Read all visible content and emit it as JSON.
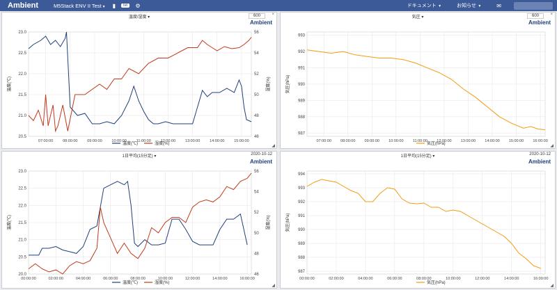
{
  "topbar": {
    "brand": "Ambient",
    "device": "M5Stack ENV II Test",
    "chip_label": "tel",
    "menu_docs": "ドキュメント",
    "menu_notice": "お知らせ",
    "bg": "#3d5a98"
  },
  "panels": [
    {
      "title": "温度/湿度",
      "count": "600",
      "brand": "Ambient",
      "chart_data": {
        "type": "line",
        "x_ticks": [
          "07:00:00",
          "08:00:00",
          "09:00:00",
          "10:00:00",
          "11:00:00",
          "12:00:00",
          "13:00:00",
          "14:00:00",
          "15:00:00"
        ],
        "y_left_ticks": [
          "20.5",
          "21.0",
          "21.5",
          "22.0",
          "22.5",
          "23.0"
        ],
        "y_right_ticks": [
          "46",
          "48",
          "50",
          "52",
          "54",
          "56"
        ],
        "ylabel_left": "温度(℃)",
        "ylabel_right": "湿度(%)",
        "ylim_left": [
          20.5,
          23.0
        ],
        "ylim_right": [
          46,
          56
        ],
        "xlim": [
          6.3,
          15.4
        ],
        "series": [
          {
            "name": "温度(℃)",
            "axis": "left",
            "color": "#1f3f7a",
            "x": [
              6.3,
              6.5,
              6.8,
              7.0,
              7.2,
              7.4,
              7.6,
              7.8,
              7.85,
              8.0,
              8.3,
              8.6,
              8.9,
              9.2,
              9.5,
              9.8,
              10.1,
              10.4,
              10.6,
              10.8,
              11.0,
              11.2,
              11.4,
              11.6,
              11.9,
              12.2,
              12.6,
              13.0,
              13.4,
              13.6,
              13.8,
              14.1,
              14.4,
              14.7,
              14.9,
              15.0,
              15.1,
              15.2,
              15.4
            ],
            "y": [
              22.6,
              22.7,
              22.8,
              22.9,
              22.7,
              22.8,
              22.65,
              22.85,
              23.0,
              21.2,
              21.0,
              21.05,
              20.8,
              20.8,
              20.85,
              20.8,
              21.0,
              21.35,
              21.7,
              21.35,
              21.1,
              20.9,
              20.8,
              20.8,
              20.85,
              20.8,
              20.8,
              20.8,
              21.6,
              21.45,
              21.55,
              21.55,
              21.65,
              21.55,
              21.85,
              21.7,
              21.2,
              20.9,
              20.85
            ]
          },
          {
            "name": "湿度(%)",
            "axis": "right",
            "color": "#c0391b",
            "x": [
              6.3,
              6.5,
              6.7,
              6.9,
              7.0,
              7.1,
              7.2,
              7.3,
              7.4,
              7.5,
              7.7,
              7.9,
              8.2,
              8.6,
              8.9,
              9.2,
              9.5,
              9.8,
              10.1,
              10.4,
              10.8,
              11.2,
              11.6,
              12.0,
              12.4,
              12.8,
              13.2,
              13.4,
              13.6,
              13.8,
              14.0,
              14.3,
              14.6,
              14.9,
              15.1,
              15.3,
              15.4
            ],
            "y": [
              48,
              47.5,
              48.5,
              47,
              50,
              47,
              48,
              49,
              46.5,
              47,
              49,
              46.5,
              50,
              50,
              50.5,
              51,
              50.5,
              51.5,
              51.5,
              52.5,
              52,
              53,
              53.5,
              53.5,
              54,
              54.5,
              54.5,
              55.2,
              54.8,
              54.5,
              54.2,
              54.6,
              54.4,
              54.5,
              54.8,
              55.2,
              55.5
            ]
          }
        ]
      }
    },
    {
      "title": "気圧",
      "count": "600",
      "brand": "Ambient",
      "chart_data": {
        "type": "line",
        "x_ticks": [
          "07:00:00",
          "08:00:00",
          "09:00:00",
          "10:00:00",
          "11:00:00",
          "12:00:00",
          "13:00:00",
          "14:00:00",
          "15:00:00",
          "16:00:00"
        ],
        "y_left_ticks": [
          "987",
          "988",
          "989",
          "990",
          "991",
          "992",
          "993"
        ],
        "ylabel_left": "気圧(hPa)",
        "ylim_left": [
          986.8,
          993.2
        ],
        "xlim": [
          6.3,
          16.2
        ],
        "series": [
          {
            "name": "気圧(hPa)",
            "axis": "left",
            "color": "#f39c12",
            "x": [
              6.3,
              6.8,
              7.3,
              7.8,
              8.3,
              8.8,
              9.3,
              9.8,
              10.3,
              10.8,
              11.3,
              11.8,
              12.3,
              12.8,
              13.3,
              13.8,
              14.3,
              14.8,
              15.3,
              15.6,
              15.9,
              16.2
            ],
            "y": [
              992.1,
              992.0,
              991.9,
              992.0,
              991.8,
              991.7,
              991.6,
              991.6,
              991.5,
              991.3,
              991.0,
              990.7,
              990.3,
              989.7,
              989.2,
              988.6,
              988.0,
              987.6,
              987.3,
              987.4,
              987.25,
              987.2
            ]
          }
        ]
      }
    },
    {
      "title": "1日平均(15分足)",
      "date": "2020-10-12",
      "brand": "Ambient",
      "chart_data": {
        "type": "line",
        "x_ticks": [
          "00:00:00",
          "02:00:00",
          "04:00:00",
          "06:00:00",
          "08:00:00",
          "10:00:00",
          "12:00:00",
          "14:00:00",
          "16:00:00"
        ],
        "y_left_ticks": [
          "20.0",
          "20.5",
          "21.0",
          "21.5",
          "22.0",
          "22.5",
          "23.0"
        ],
        "y_right_ticks": [
          "46",
          "48",
          "50",
          "52",
          "54",
          "56"
        ],
        "ylabel_left": "温度(℃)",
        "ylabel_right": "湿度(%)",
        "ylim_left": [
          20.0,
          23.0
        ],
        "ylim_right": [
          46,
          56
        ],
        "xlim": [
          0,
          16.3
        ],
        "series": [
          {
            "name": "温度(℃)",
            "axis": "left",
            "color": "#1f3f7a",
            "x": [
              0,
              0.75,
              1.0,
              1.5,
              2.0,
              2.5,
              3.0,
              3.5,
              4.0,
              4.5,
              5.0,
              5.5,
              6.0,
              6.5,
              7.0,
              7.25,
              7.5,
              7.75,
              8.0,
              8.5,
              9.0,
              9.5,
              10.0,
              10.5,
              11.0,
              11.5,
              12.0,
              12.5,
              13.0,
              13.5,
              14.0,
              14.5,
              15.0,
              15.5,
              16.0
            ],
            "y": [
              20.55,
              20.55,
              20.75,
              20.75,
              20.8,
              20.7,
              20.65,
              20.6,
              20.8,
              21.3,
              21.4,
              22.5,
              22.6,
              22.7,
              22.6,
              22.7,
              22.0,
              20.9,
              20.8,
              21.0,
              20.85,
              20.85,
              20.9,
              21.6,
              21.6,
              21.3,
              20.95,
              20.85,
              20.85,
              20.85,
              21.3,
              21.6,
              21.6,
              21.75,
              20.85
            ]
          },
          {
            "name": "湿度(%)",
            "axis": "right",
            "color": "#c0391b",
            "x": [
              0,
              0.5,
              1.0,
              1.5,
              2.0,
              2.5,
              3.0,
              3.5,
              4.0,
              4.5,
              5.0,
              5.25,
              5.5,
              6.0,
              6.5,
              7.0,
              7.5,
              8.0,
              8.5,
              9.0,
              9.5,
              10.0,
              10.5,
              11.0,
              11.5,
              12.0,
              12.5,
              13.0,
              13.5,
              14.0,
              14.5,
              15.0,
              15.5,
              16.0,
              16.3
            ],
            "y": [
              46.5,
              47.0,
              46.5,
              46.2,
              46.4,
              46.0,
              46.8,
              47.2,
              47.0,
              47.3,
              48.5,
              52.5,
              51.0,
              49.5,
              48.0,
              49.0,
              48.0,
              47.5,
              48.5,
              50.5,
              50.0,
              51.0,
              51.5,
              51.5,
              51.0,
              52.5,
              53.0,
              53.2,
              53.0,
              53.5,
              54.5,
              54.2,
              55.0,
              55.3,
              55.8
            ]
          }
        ]
      }
    },
    {
      "title": "1日平均(15分足)",
      "date": "2020-10-12",
      "brand": "Ambient",
      "chart_data": {
        "type": "line",
        "x_ticks": [
          "00:00:00",
          "02:00:00",
          "04:00:00",
          "06:00:00",
          "08:00:00",
          "10:00:00",
          "12:00:00",
          "14:00:00",
          "16:00:00"
        ],
        "y_left_ticks": [
          "987",
          "988",
          "989",
          "990",
          "991",
          "992",
          "993",
          "994"
        ],
        "ylabel_left": "気圧(hPa)",
        "ylim_left": [
          986.8,
          994.2
        ],
        "xlim": [
          0,
          16.3
        ],
        "series": [
          {
            "name": "気圧(hPa)",
            "axis": "left",
            "color": "#f39c12",
            "x": [
              0,
              0.5,
              1.0,
              1.5,
              2.0,
              2.5,
              3.0,
              3.5,
              4.0,
              4.5,
              5.0,
              5.5,
              6.0,
              6.5,
              7.0,
              7.5,
              8.0,
              8.5,
              9.0,
              9.5,
              10.0,
              10.5,
              11.0,
              11.5,
              12.0,
              12.5,
              13.0,
              13.5,
              14.0,
              14.5,
              15.0,
              15.5,
              16.0
            ],
            "y": [
              993.1,
              993.4,
              993.6,
              993.5,
              993.4,
              993.1,
              992.8,
              992.6,
              992.0,
              992.0,
              992.6,
              993.0,
              992.9,
              992.2,
              991.9,
              991.85,
              991.9,
              991.6,
              991.6,
              991.3,
              991.4,
              991.3,
              991.0,
              990.7,
              990.4,
              990.1,
              989.8,
              989.5,
              989.0,
              988.3,
              987.9,
              987.4,
              987.2
            ]
          }
        ]
      }
    }
  ]
}
